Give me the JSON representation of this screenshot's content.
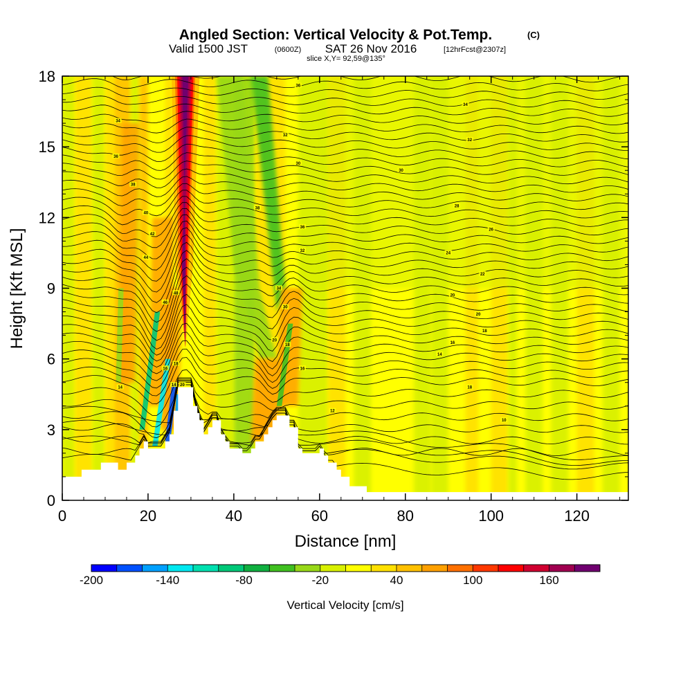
{
  "title": {
    "main": "Angled Section: Vertical Velocity & Pot.Temp.",
    "main_sup": "(C)",
    "valid_prefix": "Valid 1500 JST",
    "valid_zulu": "(0600Z)",
    "valid_date": "SAT 26 Nov 2016",
    "forecast": "[12hrFcst@2307z]",
    "slice": "slice X,Y= 92,59@135°"
  },
  "chart_data": {
    "type": "heatmap",
    "xlabel": "Distance [nm]",
    "ylabel": "Height [Kft MSL]",
    "xlim": [
      0,
      132
    ],
    "ylim": [
      0,
      18
    ],
    "x_ticks": [
      0,
      20,
      40,
      60,
      80,
      100,
      120
    ],
    "y_ticks": [
      0,
      3,
      6,
      9,
      12,
      15,
      18
    ],
    "colorbar": {
      "label": "Vertical Velocity [cm/s]",
      "min": -200,
      "max": 200,
      "step": 20,
      "tick_values": [
        -200,
        -140,
        -80,
        -20,
        40,
        100,
        160
      ],
      "colors": [
        "#0000ff",
        "#0050ff",
        "#00a0ff",
        "#00e8f0",
        "#00e0b0",
        "#00c878",
        "#10b040",
        "#40c020",
        "#98d818",
        "#d8f000",
        "#ffff00",
        "#ffe000",
        "#ffc000",
        "#ffa000",
        "#ff7000",
        "#ff3800",
        "#ff0000",
        "#d00030",
        "#a00050",
        "#700070"
      ]
    },
    "velocity_features": [
      {
        "x": 28.5,
        "y_range": [
          5,
          18
        ],
        "w": 110,
        "kind": "updraft-plume"
      },
      {
        "x": 22,
        "y_range": [
          3,
          8
        ],
        "w": 45,
        "kind": "updraft"
      },
      {
        "x": 47,
        "y_range": [
          2,
          6
        ],
        "w": 35,
        "kind": "updraft"
      },
      {
        "x": 14,
        "y_range": [
          4,
          17
        ],
        "w": 30,
        "kind": "updraft"
      },
      {
        "x": 25,
        "y_range": [
          2,
          6
        ],
        "w": -170,
        "kind": "downdraft"
      },
      {
        "x": 20,
        "y_range": [
          2,
          5
        ],
        "w": -120,
        "kind": "downdraft"
      },
      {
        "x": 38,
        "y_range": [
          6,
          18
        ],
        "w": -40,
        "kind": "downdraft"
      },
      {
        "x": 51,
        "y_range": [
          4,
          8
        ],
        "w": -60,
        "kind": "downdraft"
      }
    ],
    "terrain": [
      [
        0,
        1.0
      ],
      [
        4.5,
        1.0
      ],
      [
        4.5,
        1.3
      ],
      [
        9,
        1.3
      ],
      [
        9,
        1.6
      ],
      [
        13,
        1.6
      ],
      [
        13,
        1.3
      ],
      [
        15,
        1.3
      ],
      [
        15,
        1.6
      ],
      [
        17,
        1.6
      ],
      [
        17,
        1.9
      ],
      [
        18,
        1.9
      ],
      [
        18,
        2.2
      ],
      [
        19,
        2.2
      ],
      [
        19,
        2.5
      ],
      [
        20,
        2.5
      ],
      [
        20,
        2.2
      ],
      [
        24,
        2.2
      ],
      [
        24,
        2.5
      ],
      [
        25,
        2.5
      ],
      [
        25,
        2.8
      ],
      [
        26,
        2.8
      ],
      [
        26,
        3.8
      ],
      [
        27,
        3.8
      ],
      [
        27,
        4.8
      ],
      [
        30.5,
        4.8
      ],
      [
        30.5,
        4.0
      ],
      [
        31.5,
        4.0
      ],
      [
        31.5,
        3.7
      ],
      [
        32,
        3.7
      ],
      [
        32,
        3.4
      ],
      [
        33,
        3.4
      ],
      [
        33,
        2.8
      ],
      [
        34,
        2.8
      ],
      [
        34,
        3.1
      ],
      [
        35,
        3.1
      ],
      [
        35,
        3.4
      ],
      [
        37,
        3.4
      ],
      [
        37,
        2.8
      ],
      [
        38,
        2.8
      ],
      [
        38,
        2.5
      ],
      [
        39,
        2.5
      ],
      [
        39,
        2.2
      ],
      [
        42,
        2.2
      ],
      [
        42,
        2.0
      ],
      [
        44,
        2.0
      ],
      [
        44,
        2.2
      ],
      [
        45,
        2.2
      ],
      [
        45,
        2.5
      ],
      [
        47,
        2.5
      ],
      [
        47,
        2.8
      ],
      [
        48,
        2.8
      ],
      [
        48,
        3.1
      ],
      [
        49,
        3.1
      ],
      [
        49,
        3.4
      ],
      [
        50,
        3.4
      ],
      [
        50,
        3.6
      ],
      [
        53,
        3.6
      ],
      [
        53,
        3.1
      ],
      [
        55,
        3.1
      ],
      [
        55,
        2.2
      ],
      [
        56,
        2.2
      ],
      [
        56,
        2.0
      ],
      [
        60,
        2.0
      ],
      [
        60,
        2.2
      ],
      [
        61,
        2.2
      ],
      [
        61,
        1.9
      ],
      [
        62,
        1.9
      ],
      [
        62,
        1.6
      ],
      [
        64,
        1.6
      ],
      [
        64,
        1.3
      ],
      [
        65,
        1.3
      ],
      [
        65,
        1.0
      ],
      [
        67,
        1.0
      ],
      [
        67,
        0.6
      ],
      [
        71,
        0.6
      ],
      [
        71,
        0.35
      ],
      [
        132,
        0.35
      ]
    ],
    "potential_temperature": {
      "levels": [
        4,
        6,
        8,
        10,
        12,
        14,
        16,
        18,
        20,
        22,
        24,
        26,
        28,
        30,
        32,
        34,
        36,
        38,
        40,
        42,
        44,
        46,
        48,
        50,
        52,
        54,
        56,
        58,
        60,
        62,
        64,
        66,
        68,
        70,
        72,
        74,
        76,
        78,
        80,
        82,
        84,
        86,
        88,
        90,
        92,
        94,
        96,
        98
      ],
      "label_values": [
        10,
        12,
        14,
        16,
        18,
        20,
        22,
        24,
        26,
        28,
        30,
        32,
        34,
        36,
        38
      ],
      "label_positions": [
        {
          "text": "10",
          "x": 103,
          "y": 3.4
        },
        {
          "text": "12",
          "x": 63,
          "y": 3.8
        },
        {
          "text": "14",
          "x": 13.5,
          "y": 4.8
        },
        {
          "text": "16",
          "x": 56,
          "y": 5.6
        },
        {
          "text": "18",
          "x": 95,
          "y": 4.8
        },
        {
          "text": "14",
          "x": 88,
          "y": 6.2
        },
        {
          "text": "16",
          "x": 91,
          "y": 6.7
        },
        {
          "text": "18",
          "x": 98.5,
          "y": 7.2
        },
        {
          "text": "20",
          "x": 97,
          "y": 7.9
        },
        {
          "text": "20",
          "x": 91,
          "y": 8.7
        },
        {
          "text": "22",
          "x": 98,
          "y": 9.6
        },
        {
          "text": "24",
          "x": 90,
          "y": 10.5
        },
        {
          "text": "26",
          "x": 100,
          "y": 11.5
        },
        {
          "text": "28",
          "x": 92,
          "y": 12.5
        },
        {
          "text": "30",
          "x": 79,
          "y": 14.0
        },
        {
          "text": "32",
          "x": 95,
          "y": 15.3
        },
        {
          "text": "34",
          "x": 94,
          "y": 16.8
        },
        {
          "text": "36",
          "x": 55,
          "y": 17.6
        },
        {
          "text": "30",
          "x": 52,
          "y": 8.2
        },
        {
          "text": "32",
          "x": 56,
          "y": 10.6
        },
        {
          "text": "34",
          "x": 50.5,
          "y": 9.0
        },
        {
          "text": "36",
          "x": 56,
          "y": 11.6
        },
        {
          "text": "38",
          "x": 45.5,
          "y": 12.4
        },
        {
          "text": "30",
          "x": 55,
          "y": 14.3
        },
        {
          "text": "32",
          "x": 52,
          "y": 15.5
        },
        {
          "text": "34",
          "x": 13,
          "y": 16.1
        },
        {
          "text": "36",
          "x": 12.5,
          "y": 14.6
        },
        {
          "text": "38",
          "x": 16.5,
          "y": 13.4
        },
        {
          "text": "40",
          "x": 19.5,
          "y": 12.2
        },
        {
          "text": "42",
          "x": 21,
          "y": 11.3
        },
        {
          "text": "44",
          "x": 19.5,
          "y": 10.3
        },
        {
          "text": "46",
          "x": 24,
          "y": 8.4
        },
        {
          "text": "48",
          "x": 26.5,
          "y": 8.8
        },
        {
          "text": "18",
          "x": 52.5,
          "y": 6.6
        },
        {
          "text": "20",
          "x": 49.5,
          "y": 6.8
        },
        {
          "text": "16",
          "x": 24,
          "y": 5.6
        },
        {
          "text": "14",
          "x": 26,
          "y": 4.9
        },
        {
          "text": "18",
          "x": 26.5,
          "y": 5.8
        },
        {
          "text": "20",
          "x": 28,
          "y": 4.9
        }
      ]
    }
  }
}
